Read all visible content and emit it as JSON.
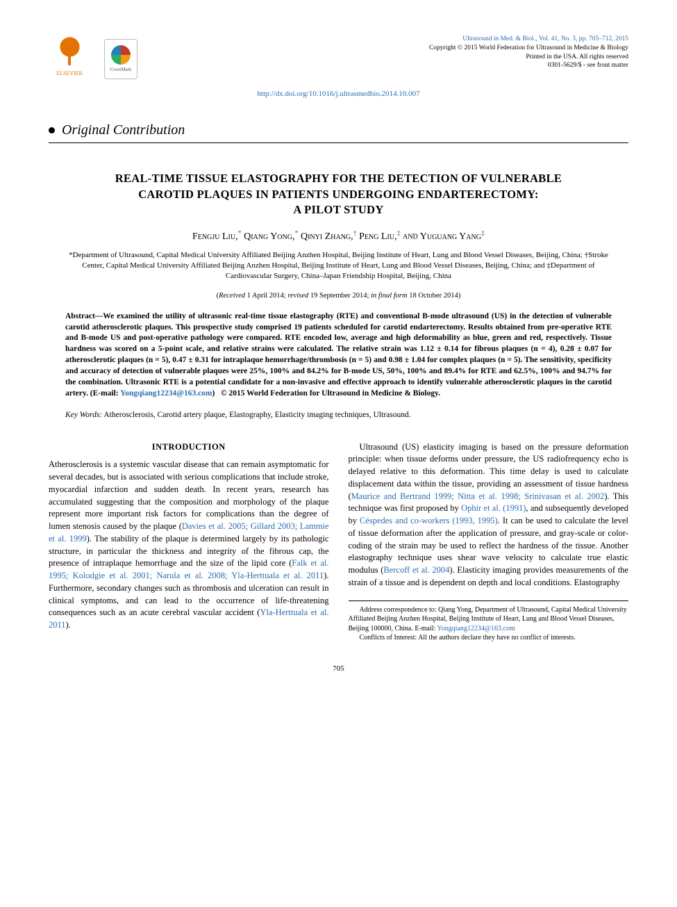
{
  "header": {
    "journal_line": "Ultrasound in Med. & Biol., Vol. 41, No. 3, pp. 705–712, 2015",
    "copyright_line": "Copyright © 2015 World Federation for Ultrasound in Medicine & Biology",
    "printed_line": "Printed in the USA. All rights reserved",
    "issn_line": "0301-5629/$ - see front matter",
    "doi_url": "http://dx.doi.org/10.1016/j.ultrasmedbio.2014.10.007",
    "elsevier_label": "ELSEVIER",
    "crossmark_label": "CrossMark"
  },
  "section_label": "Original Contribution",
  "title_lines": [
    "REAL-TIME TISSUE ELASTOGRAPHY FOR THE DETECTION OF VULNERABLE",
    "CAROTID PLAQUES IN PATIENTS UNDERGOING ENDARTERECTOMY:",
    "A PILOT STUDY"
  ],
  "authors_html": "Fengju Liu,* Qiang Yong,* Qinyi Zhang,† Peng Liu,‡ and Yuguang Yang‡",
  "authors": [
    {
      "name": "Fengju Liu",
      "mark": "*"
    },
    {
      "name": "Qiang Yong",
      "mark": "*"
    },
    {
      "name": "Qinyi Zhang",
      "mark": "†"
    },
    {
      "name": "Peng Liu",
      "mark": "‡"
    },
    {
      "name": "Yuguang Yang",
      "mark": "‡"
    }
  ],
  "affiliations": "*Department of Ultrasound, Capital Medical University Affiliated Beijing Anzhen Hospital, Beijing Institute of Heart, Lung and Blood Vessel Diseases, Beijing, China; †Stroke Center, Capital Medical University Affiliated Beijing Anzhen Hospital, Beijing Institute of Heart, Lung and Blood Vessel Diseases, Beijing, China; and ‡Department of Cardiovascular Surgery, China–Japan Friendship Hospital, Beijing, China",
  "dates": {
    "received": "1 April 2014",
    "revised": "19 September 2014",
    "final": "18 October 2014"
  },
  "abstract": {
    "label": "Abstract—",
    "text": "We examined the utility of ultrasonic real-time tissue elastography (RTE) and conventional B-mode ultrasound (US) in the detection of vulnerable carotid atherosclerotic plaques. This prospective study comprised 19 patients scheduled for carotid endarterectomy. Results obtained from pre-operative RTE and B-mode US and post-operative pathology were compared. RTE encoded low, average and high deformability as blue, green and red, respectively. Tissue hardness was scored on a 5-point scale, and relative strains were calculated. The relative strain was 1.12 ± 0.14 for fibrous plaques (n = 4), 0.28 ± 0.07 for atherosclerotic plaques (n = 5), 0.47 ± 0.31 for intraplaque hemorrhage/thrombosis (n = 5) and 0.98 ± 1.04 for complex plaques (n = 5). The sensitivity, specificity and accuracy of detection of vulnerable plaques were 25%, 100% and 84.2% for B-mode US, 50%, 100% and 89.4% for RTE and 62.5%, 100% and 94.7% for the combination. Ultrasonic RTE is a potential candidate for a non-invasive and effective approach to identify vulnerable atherosclerotic plaques in the carotid artery.",
    "email_label": "(E-mail: ",
    "email": "Yongqiang12234@163.com",
    "email_close": ")",
    "copyright": "© 2015 World Federation for Ultrasound in Medicine & Biology."
  },
  "keywords": {
    "label": "Key Words:",
    "text": " Atherosclerosis, Carotid artery plaque, Elastography, Elasticity imaging techniques, Ultrasound."
  },
  "intro_heading": "INTRODUCTION",
  "body": {
    "p1a": "Atherosclerosis is a systemic vascular disease that can remain asymptomatic for several decades, but is associated with serious complications that include stroke, myocardial infarction and sudden death. In recent years, research has accumulated suggesting that the composition and morphology of the plaque represent more important risk factors for complications than the degree of lumen stenosis caused by the plaque (",
    "c1": "Davies et al. 2005; Gillard 2003; Lammie et al. 1999",
    "p1b": "). The stability of the plaque is determined largely by its pathologic structure, in particular the thickness and integrity of the fibrous cap, the presence of intraplaque hemorrhage and the size of the lipid core (",
    "c2": "Falk et al. 1995; Kolodgie et al. 2001; Narula et al. 2008; Yla-Herttuala et al. 2011",
    "p1c": "). Furthermore, secondary changes such as thrombosis and ulceration can result in clinical symptoms, and can lead to the occurrence of life-threatening consequences such as an acute cerebral vascular accident (",
    "c3": "Yla-Herttuala et al. 2011",
    "p1d": ").",
    "p2a": "Ultrasound (US) elasticity imaging is based on the pressure deformation principle: when tissue deforms under pressure, the US radiofrequency echo is delayed relative to this deformation. This time delay is used to calculate displacement data within the tissue, providing an assessment of tissue hardness (",
    "c4": "Maurice and Bertrand 1999; Nitta et al. 1998; Srinivasan et al. 2002",
    "p2b": "). This technique was first proposed by ",
    "c5": "Ophir et al. (1991)",
    "p2c": ", and subsequently developed by ",
    "c6": "Céspedes and co-workers (1993, 1995)",
    "p2d": ". It can be used to calculate the level of tissue deformation after the application of pressure, and gray-scale or color-coding of the strain may be used to reflect the hardness of the tissue. Another elastography technique uses shear wave velocity to calculate true elastic modulus (",
    "c7": "Bercoff et al. 2004",
    "p2e": "). Elasticity imaging provides measurements of the strain of a tissue and is dependent on depth and local conditions. Elastography"
  },
  "footnote": {
    "address": "Address correspondence to: Qiang Yong, Department of Ultrasound, Capital Medical University Affiliated Beijing Anzhen Hospital, Beijing Institute of Heart, Lung and Blood Vessel Diseases, Beijing 100000, China. E-mail: ",
    "email": "Yongqiang12234@163.com",
    "conflicts": "Conflicts of Interest: All the authors declare they have no conflict of interests."
  },
  "page_number": "705",
  "colors": {
    "link": "#2b6cb0",
    "elsevier_orange": "#e57200",
    "text": "#000000",
    "background": "#ffffff"
  },
  "typography": {
    "body_fontsize_pt": 12.5,
    "title_fontsize_pt": 16.5,
    "abstract_fontsize_pt": 11.5,
    "meta_fontsize_pt": 9.5,
    "font_family": "Georgia / Times serif"
  }
}
